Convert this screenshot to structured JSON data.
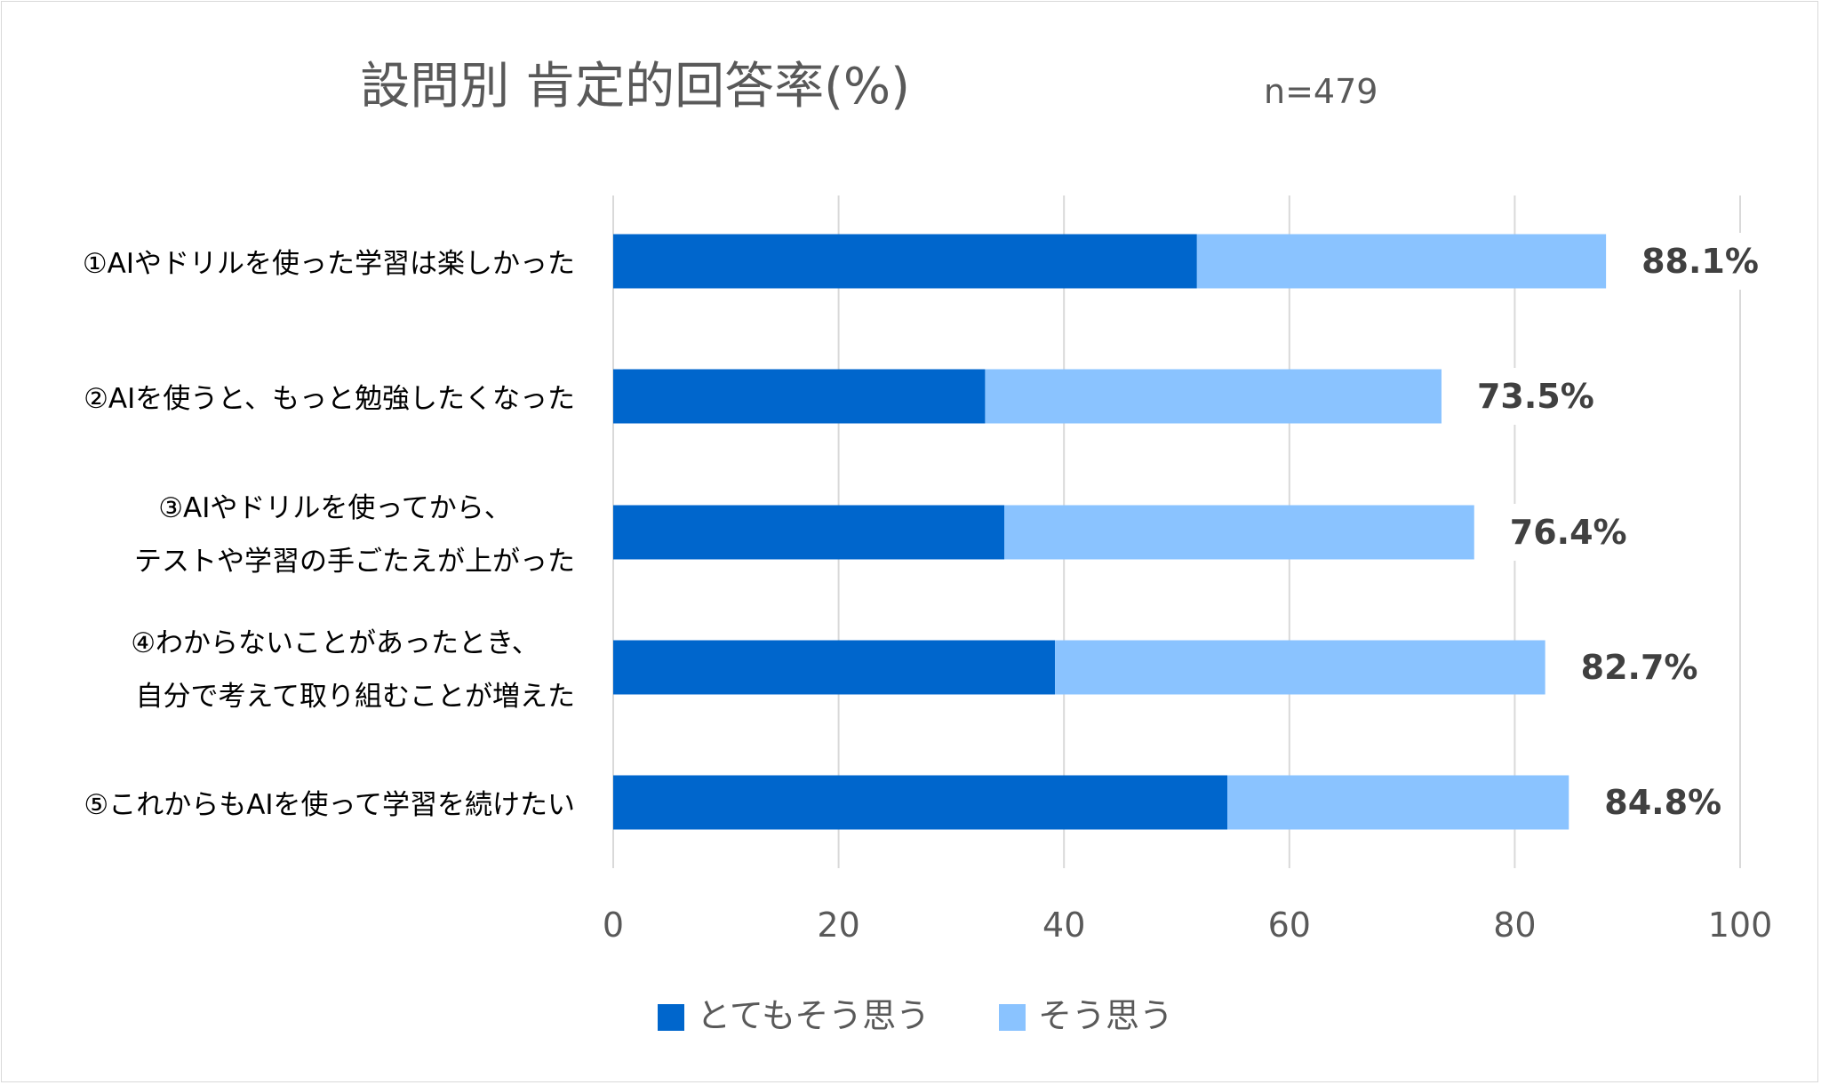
{
  "chart_data": {
    "type": "bar",
    "orientation": "horizontal",
    "stacked": true,
    "title": "設問別 肯定的回答率(%)",
    "subtitle": "n=479",
    "categories": [
      [
        "①AIやドリルを使った学習は楽しかった"
      ],
      [
        "②AIを使うと、もっと勉強したくなった"
      ],
      [
        "③AIやドリルを使ってから、",
        "テストや学習の手ごたえが上がった"
      ],
      [
        "④わからないことがあったとき、",
        "自分で考えて取り組むことが増えた"
      ],
      [
        "⑤これからもAIを使って学習を続けたい"
      ]
    ],
    "series": [
      {
        "name": "とてもそう思う",
        "color": "#0066CC",
        "values": [
          51.8,
          33.0,
          34.7,
          39.2,
          54.5
        ]
      },
      {
        "name": "そう思う",
        "color": "#8AC3FF",
        "values": [
          36.3,
          40.5,
          41.7,
          43.5,
          30.3
        ]
      }
    ],
    "data_labels": [
      "88.1%",
      "73.5%",
      "76.4%",
      "82.7%",
      "84.8%"
    ],
    "xlim": [
      0,
      100
    ],
    "xticks": [
      "0",
      "20",
      "40",
      "60",
      "80",
      "100"
    ],
    "grid": true,
    "legend_position": "bottom"
  }
}
